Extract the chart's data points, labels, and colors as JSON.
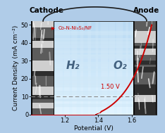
{
  "xlabel": "Potential (V)",
  "ylabel": "Current Density (mA cm⁻²)",
  "xlim": [
    1.0,
    1.75
  ],
  "ylim": [
    0,
    52
  ],
  "yticks": [
    0,
    10,
    20,
    30,
    40,
    50
  ],
  "xticks": [
    1.2,
    1.4,
    1.6
  ],
  "curve_color": "#cc0000",
  "label_text": "Co-N-Ni₃S₂/NF",
  "annotation_text": "1.50 V",
  "cathode_text": "Cathode",
  "anode_text": "Anode",
  "h2_text": "H₂",
  "o2_text": "O₂",
  "water_color": "#a8c8e8",
  "water_color_top": "#c0d8f0",
  "font_size_axis": 6.5,
  "font_size_label": 8
}
